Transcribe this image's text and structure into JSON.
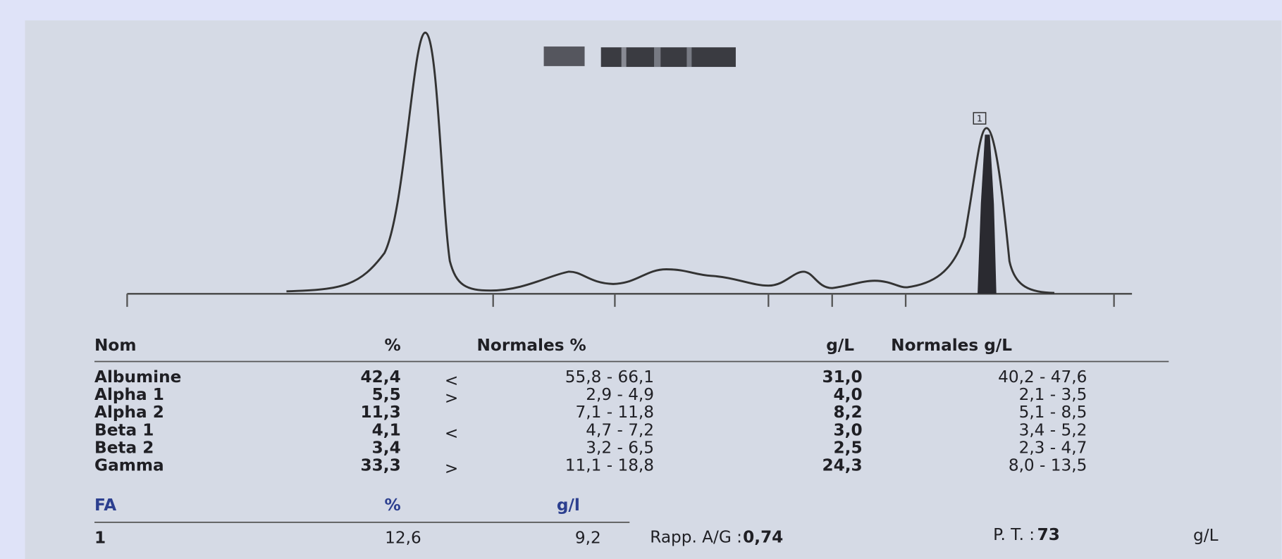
{
  "peak_marker": "1",
  "table": {
    "header": [
      "Nom",
      "%",
      "Normales %",
      "g/L",
      "Normales g/L"
    ],
    "rows": [
      {
        "name": "Albumine",
        "pct": "42,4",
        "flag": "<",
        "normal_pct": "55,8 - 66,1",
        "gl": "31,0",
        "normal_gl": "40,2 -  47,6"
      },
      {
        "name": "Alpha 1",
        "pct": "5,5",
        "flag": ">",
        "normal_pct": "2,9 -  4,9",
        "gl": "4,0",
        "normal_gl": "2,1 -   3,5"
      },
      {
        "name": "Alpha 2",
        "pct": "11,3",
        "normal_pct": "7,1 - 11,8",
        "gl": "8,2",
        "normal_gl": "5,1 -   8,5"
      },
      {
        "name": "Beta 1",
        "pct": "4,1",
        "flag": "<",
        "normal_pct": "4,7 -  7,2",
        "gl": "3,0",
        "normal_gl": "3,4 -   5,2"
      },
      {
        "name": "Beta 2",
        "pct": "3,4",
        "normal_pct": "3,2 -  6,5",
        "gl": "2,5",
        "normal_gl": "2,3 -   4,7"
      },
      {
        "name": "Gamma",
        "pct": "33,3",
        "flag": ">",
        "normal_pct": "11,1 - 18,8",
        "gl": "24,3",
        "normal_gl": "8,0 -  13,5"
      }
    ]
  },
  "fa": {
    "header": [
      "FA",
      "%",
      "g/l"
    ],
    "rows": [
      [
        "1",
        "12,6",
        "9,2"
      ]
    ]
  },
  "ratio": {
    "label": "Rapp. A/G :",
    "value": "0,74"
  },
  "total_protein": {
    "label": "P. T. :",
    "value": "73",
    "unit": "g/L"
  }
}
